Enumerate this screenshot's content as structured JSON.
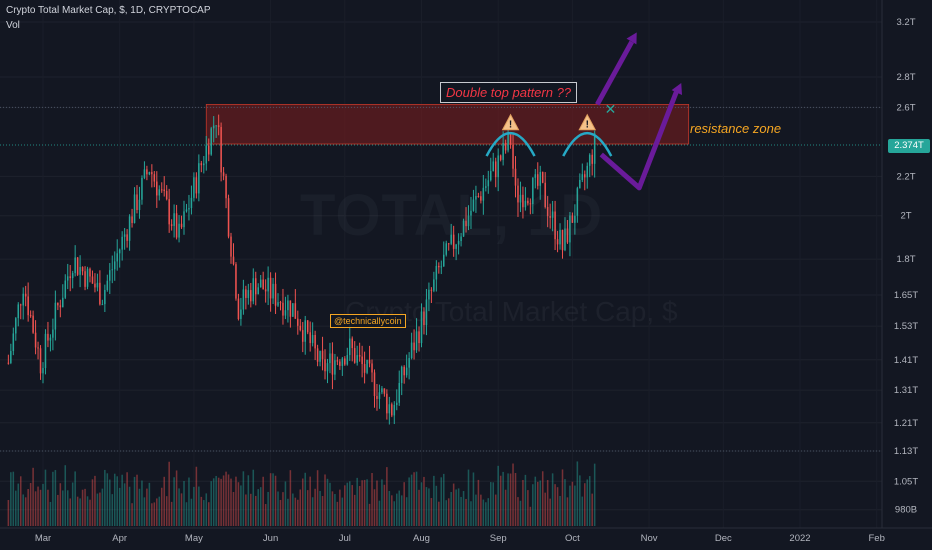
{
  "header": {
    "title": "Crypto Total Market Cap, $, 1D, CRYPTOCAP",
    "volume_label": "Vol"
  },
  "watermark": {
    "symbol": "TOTAL, 1D",
    "name": "Crypto Total Market Cap, $"
  },
  "price_axis": {
    "labels": [
      "3.2T",
      "2.8T",
      "2.6T",
      "2.2T",
      "2T",
      "1.8T",
      "1.65T",
      "1.53T",
      "1.41T",
      "1.31T",
      "1.21T",
      "1.13T",
      "1.05T",
      "980B"
    ],
    "values": [
      3.2,
      2.8,
      2.6,
      2.2,
      2.0,
      1.8,
      1.65,
      1.53,
      1.41,
      1.31,
      1.21,
      1.13,
      1.05,
      0.98
    ],
    "last_price_label": "2.374T",
    "last_price": 2.374,
    "scale": "log"
  },
  "time_axis": {
    "labels": [
      "Mar",
      "Apr",
      "May",
      "Jun",
      "Jul",
      "Aug",
      "Sep",
      "Oct",
      "Nov",
      "Dec",
      "2022",
      "Feb"
    ]
  },
  "annotations": {
    "pattern_label": "Double top pattern ??",
    "resistance_label": "resistance zone",
    "handle": "@technicallycoin"
  },
  "colors": {
    "background": "#131722",
    "up": "#26a69a",
    "down": "#ef5350",
    "resistance_fill": "#7f1d1d",
    "arc": "#26a9c5",
    "arrow": "#6a1b9a",
    "warning": "#f5c28a"
  },
  "chart_data": {
    "type": "candlestick",
    "title": "Crypto Total Market Cap, $, 1D, CRYPTOCAP",
    "scale": "log",
    "ylim": [
      0.95,
      3.3
    ],
    "x_range": [
      "2021-02-15",
      "2022-02-20"
    ],
    "resistance_zone": [
      2.38,
      2.62
    ],
    "last_price": 2.374,
    "key_points": [
      {
        "date": "2021-02-15",
        "close": 1.4
      },
      {
        "date": "2021-02-21",
        "close": 1.7
      },
      {
        "date": "2021-02-28",
        "close": 1.4
      },
      {
        "date": "2021-03-13",
        "close": 1.8
      },
      {
        "date": "2021-03-25",
        "close": 1.65
      },
      {
        "date": "2021-04-13",
        "close": 2.25
      },
      {
        "date": "2021-04-25",
        "close": 1.9
      },
      {
        "date": "2021-05-10",
        "close": 2.55
      },
      {
        "date": "2021-05-19",
        "close": 1.6
      },
      {
        "date": "2021-05-26",
        "close": 1.7
      },
      {
        "date": "2021-06-10",
        "close": 1.6
      },
      {
        "date": "2021-06-22",
        "close": 1.38
      },
      {
        "date": "2021-07-03",
        "close": 1.45
      },
      {
        "date": "2021-07-20",
        "close": 1.25
      },
      {
        "date": "2021-08-08",
        "close": 1.75
      },
      {
        "date": "2021-08-22",
        "close": 2.05
      },
      {
        "date": "2021-09-06",
        "close": 2.4
      },
      {
        "date": "2021-09-08",
        "close": 2.1
      },
      {
        "date": "2021-09-18",
        "close": 2.15
      },
      {
        "date": "2021-09-27",
        "close": 1.85
      },
      {
        "date": "2021-10-05",
        "close": 2.15
      },
      {
        "date": "2021-10-10",
        "close": 2.374
      }
    ]
  }
}
